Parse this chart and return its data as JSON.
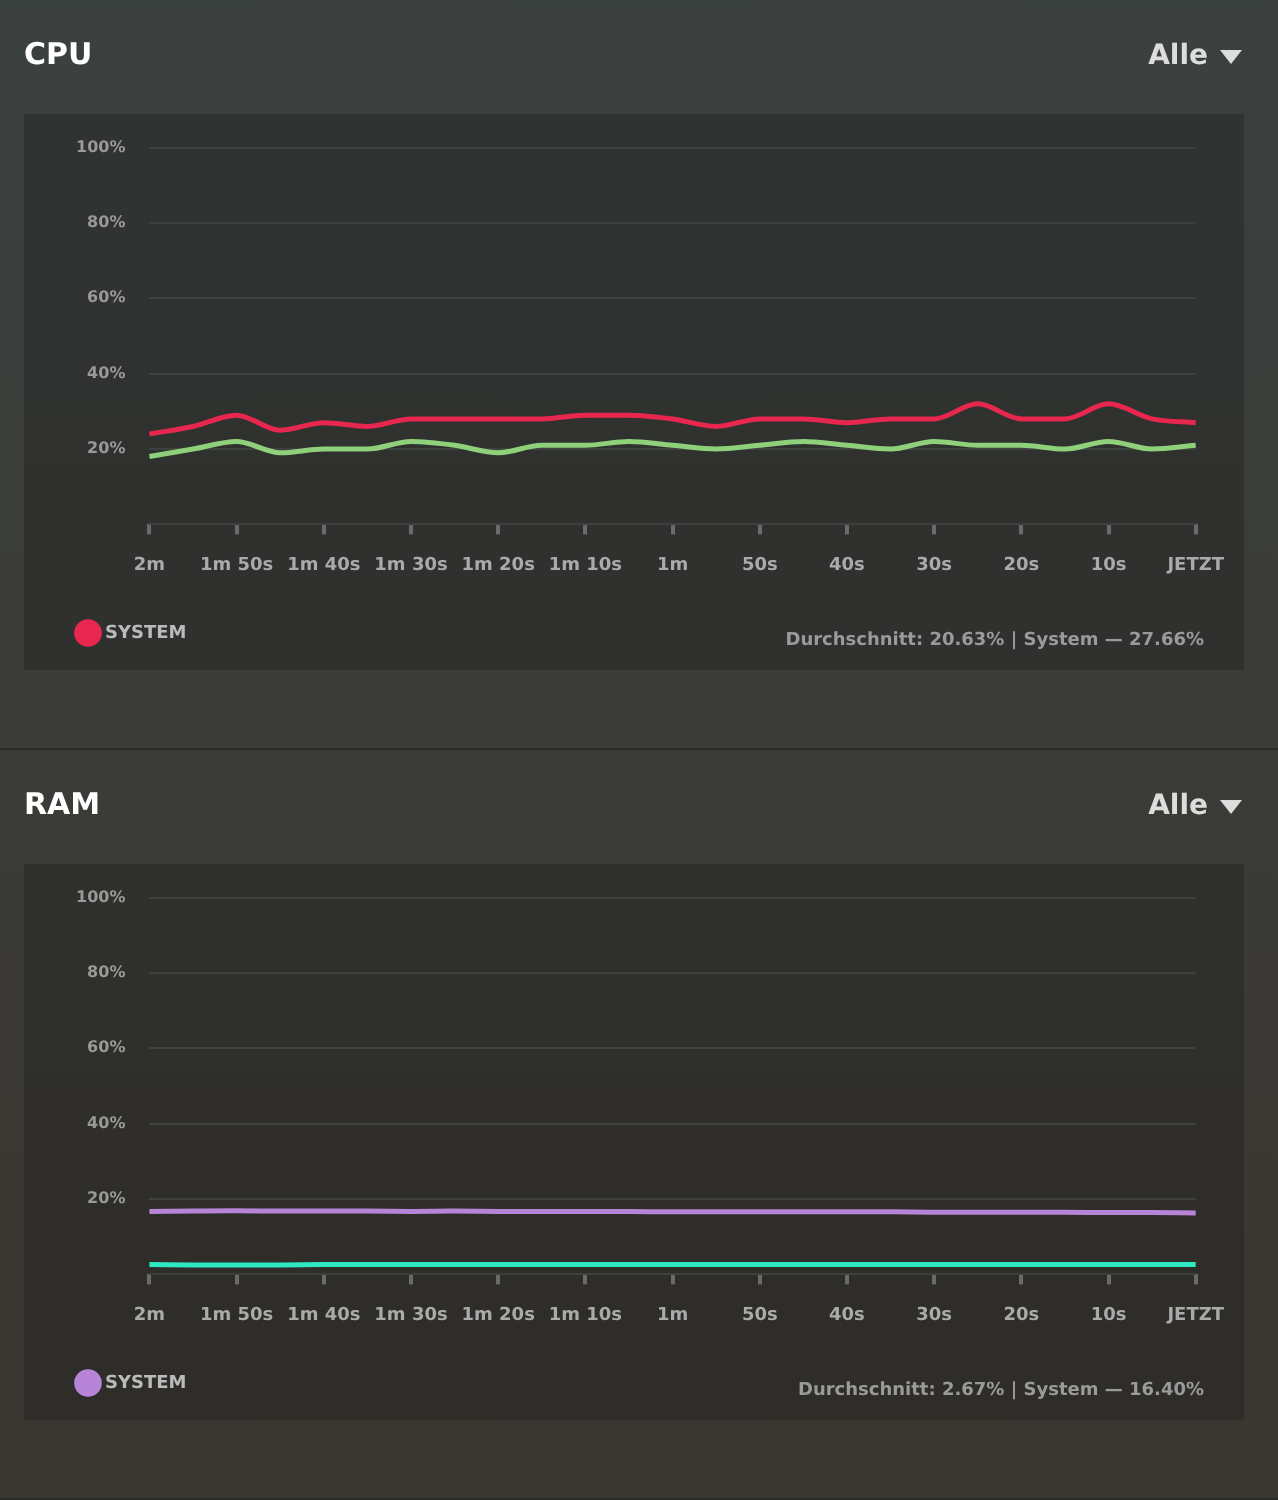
{
  "chart_data": [
    {
      "type": "line",
      "title": "CPU",
      "categories": [
        "2m",
        null,
        "1m 50s",
        null,
        "1m 40s",
        null,
        "1m 30s",
        null,
        "1m 20s",
        null,
        "1m 10s",
        null,
        "1m",
        null,
        "50s",
        null,
        "40s",
        null,
        "30s",
        null,
        "20s",
        null,
        "10s",
        null,
        "JETZT"
      ],
      "series": [
        {
          "color": "#8fd07a",
          "values": [
            18,
            20,
            22,
            19,
            20,
            20,
            22,
            21,
            19,
            21,
            21,
            22,
            21,
            20,
            21,
            22,
            21,
            20,
            22,
            21,
            21,
            20,
            22,
            20,
            21
          ]
        },
        {
          "name": "SYSTEM",
          "color": "#e8274f",
          "values": [
            24,
            26,
            29,
            25,
            27,
            26,
            28,
            28,
            28,
            28,
            29,
            29,
            28,
            26,
            28,
            28,
            27,
            28,
            28,
            32,
            28,
            28,
            32,
            28,
            27
          ]
        }
      ],
      "ylim": [
        0,
        100
      ],
      "yticks": [
        {
          "value": 0,
          "label": null
        },
        {
          "value": 20,
          "label": "20%"
        },
        {
          "value": 40,
          "label": "40%"
        },
        {
          "value": 60,
          "label": "60%"
        },
        {
          "value": 80,
          "label": "80%"
        },
        {
          "value": 100,
          "label": "100%"
        }
      ],
      "grid": "y",
      "legend": "bottom left",
      "marker": "none",
      "line_style": "solid",
      "annotations": [
        "Alle",
        "Durchschnitt: 20.63% | System — 27.66%"
      ]
    },
    {
      "type": "line",
      "title": "RAM",
      "categories": [
        "2m",
        null,
        "1m 50s",
        null,
        "1m 40s",
        null,
        "1m 30s",
        null,
        "1m 20s",
        null,
        "1m 10s",
        null,
        "1m",
        null,
        "50s",
        null,
        "40s",
        null,
        "30s",
        null,
        "20s",
        null,
        "10s",
        null,
        "JETZT"
      ],
      "series": [
        {
          "color": "#2ee8c0",
          "values": [
            2.6,
            2.5,
            2.5,
            2.5,
            2.6,
            2.6,
            2.6,
            2.6,
            2.6,
            2.6,
            2.6,
            2.6,
            2.6,
            2.6,
            2.6,
            2.6,
            2.6,
            2.6,
            2.6,
            2.6,
            2.6,
            2.6,
            2.6,
            2.6,
            2.6
          ]
        },
        {
          "name": "SYSTEM",
          "color": "#b784d8",
          "values": [
            16.7,
            16.8,
            16.9,
            16.8,
            16.8,
            16.8,
            16.7,
            16.8,
            16.7,
            16.7,
            16.7,
            16.7,
            16.6,
            16.6,
            16.6,
            16.6,
            16.6,
            16.6,
            16.5,
            16.5,
            16.5,
            16.5,
            16.4,
            16.4,
            16.3
          ]
        }
      ],
      "ylim": [
        0,
        100
      ],
      "yticks": [
        {
          "value": 0,
          "label": null
        },
        {
          "value": 20,
          "label": "20%"
        },
        {
          "value": 40,
          "label": "40%"
        },
        {
          "value": 60,
          "label": "60%"
        },
        {
          "value": 80,
          "label": "80%"
        },
        {
          "value": 100,
          "label": "100%"
        }
      ],
      "grid": "y",
      "legend": "bottom left",
      "marker": "none",
      "line_style": "solid",
      "annotations": [
        "Alle",
        "Durchschnitt: 2.67% | System — 16.40%"
      ]
    }
  ]
}
